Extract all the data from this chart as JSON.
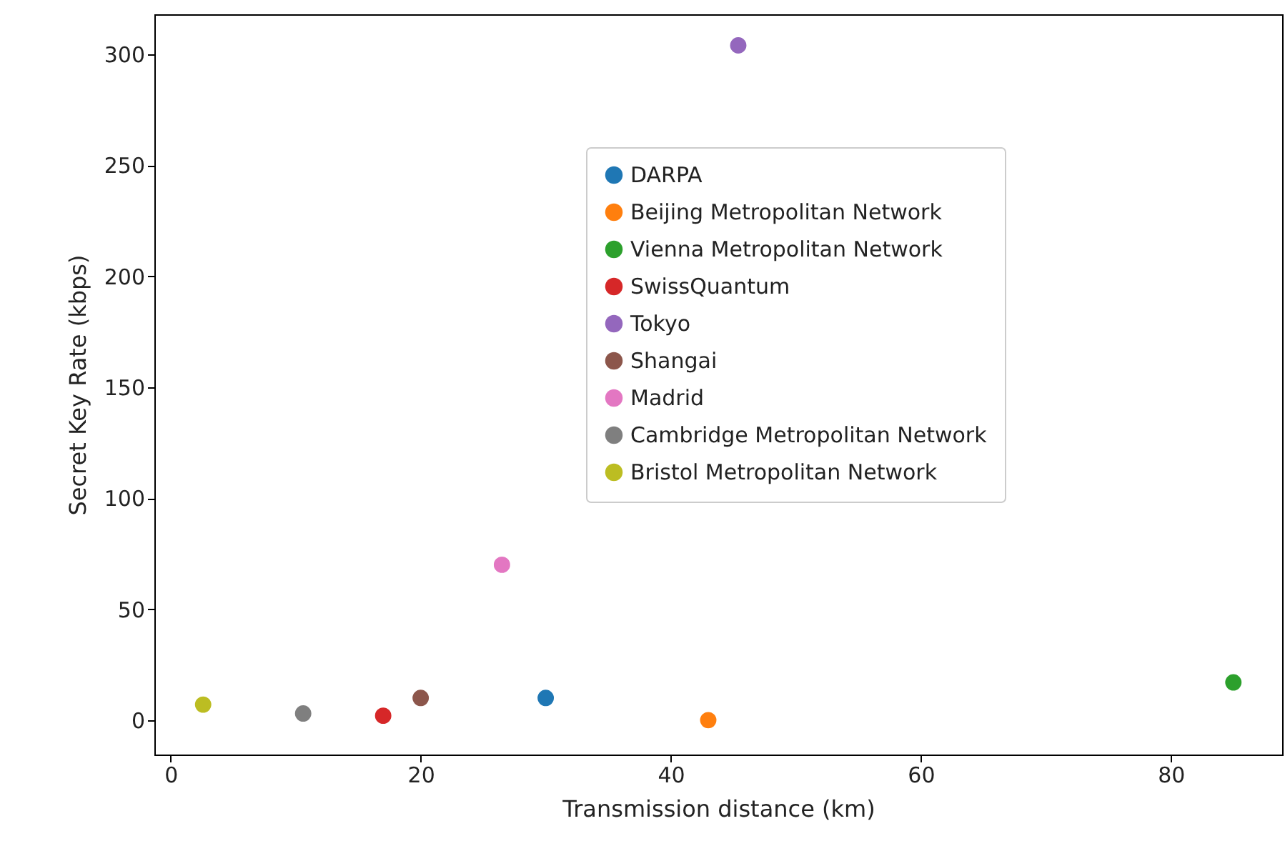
{
  "chart_data": {
    "type": "scatter",
    "xlabel": "Transmission distance (km)",
    "ylabel": "Secret Key Rate (kbps)",
    "xlim": [
      -1.3,
      88.9
    ],
    "ylim": [
      -15.5,
      318
    ],
    "xticks": [
      0,
      20,
      40,
      60,
      80
    ],
    "yticks": [
      0,
      50,
      100,
      150,
      200,
      250,
      300
    ],
    "grid": false,
    "legend": "top right",
    "marker": "circle",
    "series": [
      {
        "name": "DARPA",
        "color": "#1f77b4",
        "x": [
          30
        ],
        "values": [
          10
        ]
      },
      {
        "name": "Beijing Metropolitan Network",
        "color": "#ff7f0e",
        "x": [
          43
        ],
        "values": [
          0
        ]
      },
      {
        "name": "Vienna Metropolitan Network",
        "color": "#2ca02c",
        "x": [
          85
        ],
        "values": [
          17
        ]
      },
      {
        "name": "SwissQuantum",
        "color": "#d62728",
        "x": [
          17
        ],
        "values": [
          2
        ]
      },
      {
        "name": "Tokyo",
        "color": "#9467bd",
        "x": [
          45.4
        ],
        "values": [
          304
        ]
      },
      {
        "name": "Shangai",
        "color": "#8c564b",
        "x": [
          20
        ],
        "values": [
          10
        ]
      },
      {
        "name": "Madrid",
        "color": "#e377c2",
        "x": [
          26.5
        ],
        "values": [
          70
        ]
      },
      {
        "name": "Cambridge Metropolitan Network",
        "color": "#7f7f7f",
        "x": [
          10.6
        ],
        "values": [
          3
        ]
      },
      {
        "name": "Bristol Metropolitan Network",
        "color": "#bcbd22",
        "x": [
          2.6
        ],
        "values": [
          7
        ]
      }
    ]
  }
}
